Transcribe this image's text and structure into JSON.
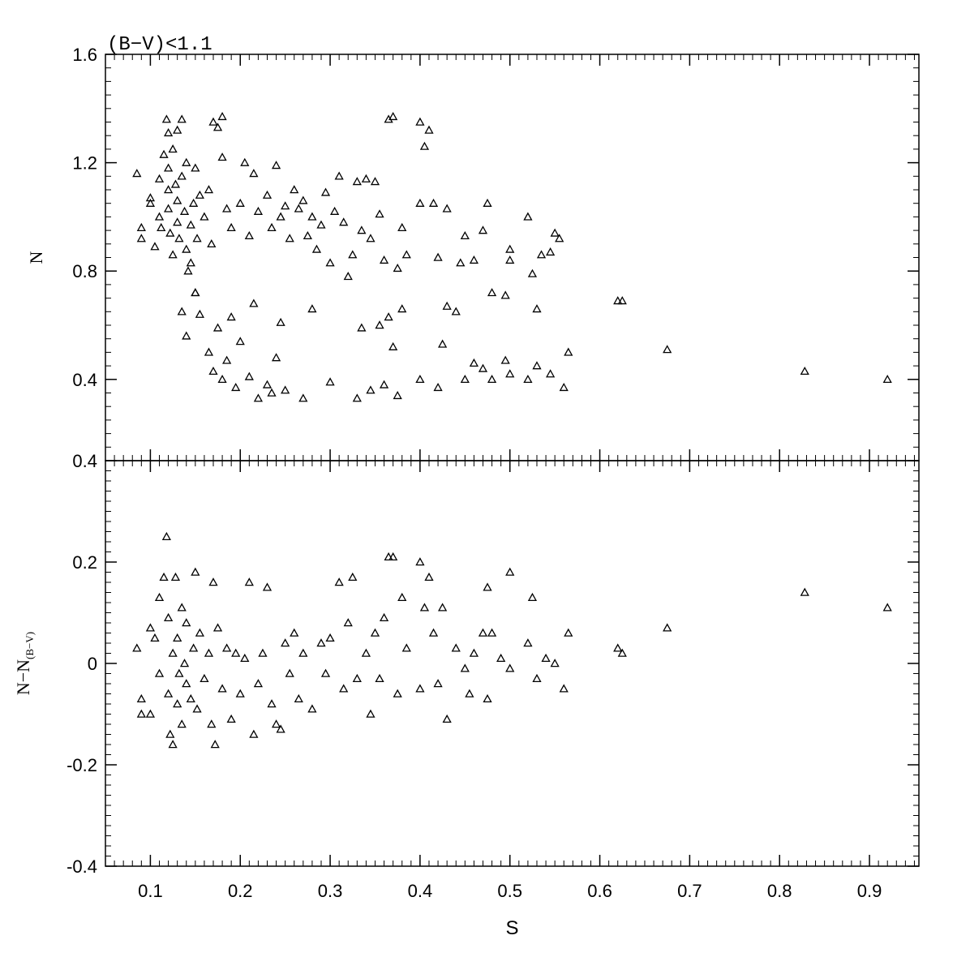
{
  "chart_data": [
    {
      "type": "scatter",
      "title": "(B−V)<1.1",
      "y_label": "N",
      "marker": "open-triangle",
      "color": "#000000",
      "xlim": [
        0.05,
        0.955
      ],
      "xticks": [
        0.1,
        0.2,
        0.3,
        0.4,
        0.5,
        0.6,
        0.7,
        0.8,
        0.9
      ],
      "ylim": [
        0.1,
        1.6
      ],
      "yticks": [
        0.4,
        0.8,
        1.2,
        1.6
      ],
      "x": [
        0.085,
        0.09,
        0.09,
        0.1,
        0.1,
        0.105,
        0.11,
        0.11,
        0.112,
        0.115,
        0.118,
        0.12,
        0.12,
        0.12,
        0.12,
        0.122,
        0.125,
        0.125,
        0.128,
        0.13,
        0.13,
        0.13,
        0.132,
        0.135,
        0.135,
        0.138,
        0.14,
        0.14,
        0.142,
        0.145,
        0.145,
        0.148,
        0.15,
        0.15,
        0.152,
        0.155,
        0.16,
        0.165,
        0.168,
        0.17,
        0.175,
        0.18,
        0.18,
        0.185,
        0.19,
        0.2,
        0.205,
        0.21,
        0.215,
        0.22,
        0.23,
        0.235,
        0.24,
        0.245,
        0.25,
        0.255,
        0.26,
        0.265,
        0.27,
        0.275,
        0.28,
        0.285,
        0.29,
        0.295,
        0.3,
        0.305,
        0.31,
        0.315,
        0.32,
        0.325,
        0.33,
        0.335,
        0.34,
        0.345,
        0.35,
        0.355,
        0.36,
        0.365,
        0.37,
        0.375,
        0.38,
        0.385,
        0.4,
        0.4,
        0.405,
        0.41,
        0.415,
        0.42,
        0.43,
        0.445,
        0.45,
        0.46,
        0.47,
        0.475,
        0.48,
        0.495,
        0.5,
        0.5,
        0.52,
        0.525,
        0.53,
        0.535,
        0.545,
        0.55,
        0.555,
        0.135,
        0.14,
        0.15,
        0.155,
        0.165,
        0.17,
        0.175,
        0.18,
        0.185,
        0.19,
        0.195,
        0.2,
        0.21,
        0.215,
        0.22,
        0.23,
        0.235,
        0.24,
        0.245,
        0.25,
        0.27,
        0.28,
        0.3,
        0.33,
        0.335,
        0.345,
        0.355,
        0.36,
        0.365,
        0.37,
        0.375,
        0.38,
        0.4,
        0.42,
        0.425,
        0.43,
        0.44,
        0.45,
        0.46,
        0.47,
        0.48,
        0.495,
        0.5,
        0.52,
        0.53,
        0.545,
        0.56,
        0.565,
        0.62,
        0.625,
        0.675,
        0.828,
        0.92
      ],
      "values": [
        1.16,
        0.96,
        0.92,
        1.07,
        1.05,
        0.89,
        1.14,
        1.0,
        0.96,
        1.23,
        1.36,
        1.31,
        1.18,
        1.1,
        1.03,
        0.94,
        0.86,
        1.25,
        1.12,
        1.06,
        0.98,
        1.32,
        0.92,
        1.36,
        1.15,
        1.02,
        0.88,
        1.2,
        0.8,
        0.83,
        0.97,
        1.05,
        1.18,
        0.72,
        0.92,
        1.08,
        1.0,
        1.1,
        0.9,
        1.35,
        1.33,
        1.37,
        1.22,
        1.03,
        0.96,
        1.05,
        1.2,
        0.93,
        1.16,
        1.02,
        1.08,
        0.96,
        1.19,
        1.0,
        1.04,
        0.92,
        1.1,
        1.03,
        1.06,
        0.93,
        1.0,
        0.88,
        0.97,
        1.09,
        0.83,
        1.02,
        1.15,
        0.98,
        0.78,
        0.86,
        1.13,
        0.95,
        1.14,
        0.92,
        1.13,
        1.01,
        0.84,
        1.36,
        1.37,
        0.81,
        0.96,
        0.86,
        1.05,
        1.35,
        1.26,
        1.32,
        1.05,
        0.85,
        1.03,
        0.83,
        0.93,
        0.84,
        0.95,
        1.05,
        0.72,
        0.71,
        0.88,
        0.84,
        1.0,
        0.79,
        0.66,
        0.86,
        0.87,
        0.94,
        0.92,
        0.65,
        0.56,
        0.72,
        0.64,
        0.5,
        0.43,
        0.59,
        0.4,
        0.47,
        0.63,
        0.37,
        0.54,
        0.41,
        0.68,
        0.33,
        0.38,
        0.35,
        0.48,
        0.61,
        0.36,
        0.33,
        0.66,
        0.39,
        0.33,
        0.59,
        0.36,
        0.6,
        0.38,
        0.63,
        0.52,
        0.34,
        0.66,
        0.4,
        0.37,
        0.53,
        0.67,
        0.65,
        0.4,
        0.46,
        0.44,
        0.4,
        0.47,
        0.42,
        0.4,
        0.45,
        0.42,
        0.37,
        0.5,
        0.69,
        0.69,
        0.51,
        0.43,
        0.4
      ]
    },
    {
      "type": "scatter",
      "x_label": "S",
      "y_label": "N−N",
      "y_label_subscript": "(B−V)",
      "marker": "open-triangle",
      "color": "#000000",
      "xlim": [
        0.05,
        0.955
      ],
      "xticks": [
        0.1,
        0.2,
        0.3,
        0.4,
        0.5,
        0.6,
        0.7,
        0.8,
        0.9
      ],
      "ylim": [
        -0.4,
        0.4
      ],
      "yticks": [
        -0.4,
        -0.2,
        0,
        0.2,
        0.4
      ],
      "x": [
        0.085,
        0.09,
        0.09,
        0.1,
        0.1,
        0.105,
        0.11,
        0.11,
        0.115,
        0.118,
        0.12,
        0.12,
        0.122,
        0.125,
        0.125,
        0.128,
        0.13,
        0.13,
        0.132,
        0.135,
        0.135,
        0.138,
        0.14,
        0.14,
        0.145,
        0.148,
        0.15,
        0.152,
        0.155,
        0.16,
        0.165,
        0.168,
        0.17,
        0.172,
        0.175,
        0.18,
        0.185,
        0.19,
        0.195,
        0.2,
        0.205,
        0.21,
        0.215,
        0.22,
        0.225,
        0.23,
        0.235,
        0.24,
        0.245,
        0.25,
        0.255,
        0.26,
        0.265,
        0.27,
        0.28,
        0.29,
        0.295,
        0.3,
        0.31,
        0.315,
        0.32,
        0.325,
        0.33,
        0.34,
        0.345,
        0.35,
        0.355,
        0.36,
        0.365,
        0.37,
        0.375,
        0.38,
        0.385,
        0.4,
        0.4,
        0.405,
        0.41,
        0.415,
        0.42,
        0.425,
        0.43,
        0.44,
        0.45,
        0.455,
        0.46,
        0.47,
        0.475,
        0.475,
        0.48,
        0.49,
        0.5,
        0.5,
        0.52,
        0.525,
        0.53,
        0.54,
        0.55,
        0.56,
        0.565,
        0.62,
        0.625,
        0.675,
        0.828,
        0.92
      ],
      "values": [
        0.03,
        -0.07,
        -0.1,
        0.07,
        -0.1,
        0.05,
        0.13,
        -0.02,
        0.17,
        0.25,
        0.09,
        -0.06,
        -0.14,
        -0.16,
        0.02,
        0.17,
        -0.08,
        0.05,
        -0.02,
        0.11,
        -0.12,
        0.0,
        -0.04,
        0.08,
        -0.07,
        0.03,
        0.18,
        -0.09,
        0.06,
        -0.03,
        0.02,
        -0.12,
        0.16,
        -0.16,
        0.07,
        -0.05,
        0.03,
        -0.11,
        0.02,
        -0.06,
        0.01,
        0.16,
        -0.14,
        -0.04,
        0.02,
        0.15,
        -0.08,
        -0.12,
        -0.13,
        0.04,
        -0.02,
        0.06,
        -0.07,
        0.02,
        -0.09,
        0.04,
        -0.02,
        0.05,
        0.16,
        -0.05,
        0.08,
        0.17,
        -0.03,
        0.02,
        -0.1,
        0.06,
        -0.03,
        0.09,
        0.21,
        0.21,
        -0.06,
        0.13,
        0.03,
        0.2,
        -0.05,
        0.11,
        0.17,
        0.06,
        -0.04,
        0.11,
        -0.11,
        0.03,
        -0.01,
        -0.06,
        0.02,
        0.06,
        0.15,
        -0.07,
        0.06,
        0.01,
        0.18,
        -0.01,
        0.04,
        0.13,
        -0.03,
        0.01,
        0.0,
        -0.05,
        0.06,
        0.03,
        0.02,
        0.07,
        0.14,
        0.11
      ]
    }
  ]
}
